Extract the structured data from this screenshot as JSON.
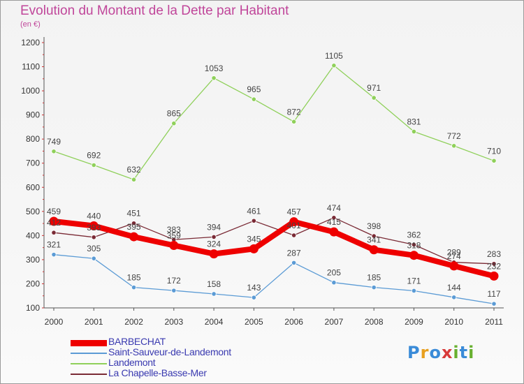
{
  "title": "Evolution du Montant de la Dette par Habitant",
  "subtitle": "(en €)",
  "logo": {
    "letters": [
      "P",
      "r",
      "o",
      "x",
      "i",
      "t",
      "i"
    ],
    "colors": [
      "#3a8bd8",
      "#e8a020",
      "#3a8bd8",
      "#d83a3a",
      "#68b030",
      "#3a8bd8",
      "#68b030"
    ]
  },
  "chart_data": {
    "type": "line",
    "title": "Evolution du Montant de la Dette par Habitant",
    "subtitle": "(en €)",
    "xlabel": "",
    "ylabel": "",
    "ylim": [
      100,
      1200
    ],
    "yticks": [
      "100",
      "200",
      "300",
      "400",
      "500",
      "600",
      "700",
      "800",
      "900",
      "1000",
      "1100",
      "1200"
    ],
    "categories": [
      "2000",
      "2001",
      "2002",
      "2003",
      "2004",
      "2005",
      "2006",
      "2007",
      "2008",
      "2009",
      "2010",
      "2011"
    ],
    "grid": false,
    "legend_position": "bottom-left",
    "series": [
      {
        "name": "BARBECHAT",
        "color": "#ee0000",
        "values": [
          459,
          440,
          395,
          359,
          324,
          345,
          457,
          415,
          341,
          318,
          274,
          232
        ],
        "labels": [
          "459",
          "440",
          "395",
          "359",
          "324",
          "345",
          "457",
          "415",
          "341",
          "318",
          "274",
          "232"
        ]
      },
      {
        "name": "Saint-Sauveur-de-Landemont",
        "color": "#5b9bd5",
        "values": [
          321,
          305,
          185,
          172,
          158,
          143,
          287,
          205,
          185,
          171,
          144,
          117
        ],
        "labels": [
          "321",
          "305",
          "185",
          "172",
          "158",
          "143",
          "287",
          "205",
          "185",
          "171",
          "144",
          "117"
        ]
      },
      {
        "name": "Landemont",
        "color": "#8fd05a",
        "values": [
          749,
          692,
          632,
          865,
          1053,
          965,
          872,
          1105,
          971,
          831,
          772,
          710
        ],
        "labels": [
          "749",
          "692",
          "632",
          "865",
          "1053",
          "965",
          "872",
          "1105",
          "971",
          "831",
          "772",
          "710"
        ]
      },
      {
        "name": "La Chapelle-Basse-Mer",
        "color": "#7a2a35",
        "values": [
          412,
          393,
          451,
          383,
          394,
          461,
          401,
          474,
          398,
          362,
          289,
          283
        ],
        "labels": [
          "412",
          "393",
          "451",
          "383",
          "394",
          "461",
          "401",
          "474",
          "398",
          "362",
          "289",
          "283"
        ]
      }
    ]
  }
}
